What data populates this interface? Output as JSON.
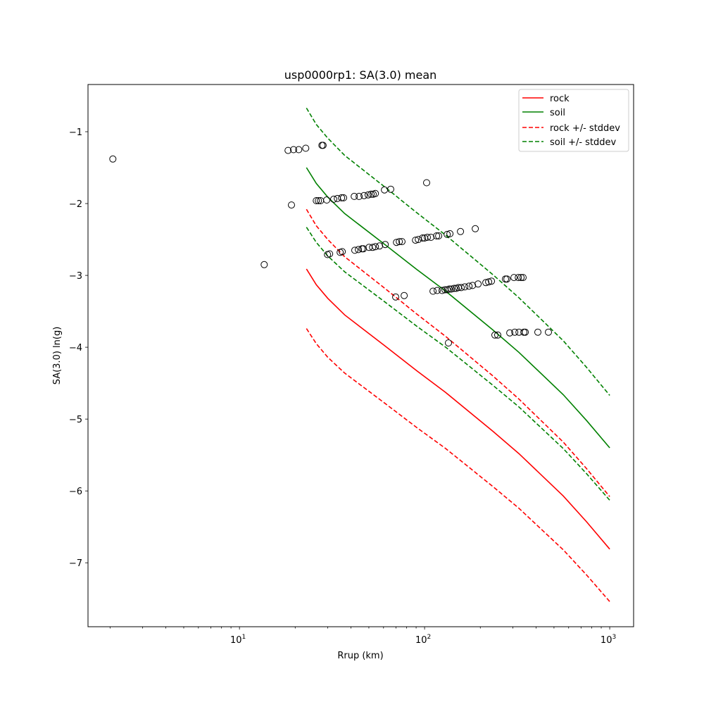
{
  "chart_data": {
    "type": "line",
    "title": "usp0000rp1: SA(3.0) mean",
    "xlabel": "Rrup (km)",
    "ylabel": "SA(3.0) ln(g)",
    "xscale": "log",
    "xlim": [
      1.52,
      1346
    ],
    "ylim": [
      -7.89,
      -0.343
    ],
    "grid": false,
    "legend_placement": "top-right",
    "x_ticks": [
      {
        "value": 10,
        "base": "10",
        "exp": "1"
      },
      {
        "value": 100,
        "base": "10",
        "exp": "2"
      },
      {
        "value": 1000,
        "base": "10",
        "exp": "3"
      }
    ],
    "y_ticks": [
      {
        "value": -1,
        "label": "−1"
      },
      {
        "value": -2,
        "label": "−2"
      },
      {
        "value": -3,
        "label": "−3"
      },
      {
        "value": -4,
        "label": "−4"
      },
      {
        "value": -5,
        "label": "−5"
      },
      {
        "value": -6,
        "label": "−6"
      },
      {
        "value": -7,
        "label": "−7"
      }
    ],
    "curve_x": [
      23,
      26,
      30,
      37,
      61,
      91,
      130,
      234,
      323,
      561,
      750,
      1000
    ],
    "series": [
      {
        "name": "rock",
        "color": "#ff0000",
        "style": "solid",
        "values": [
          -2.91,
          -3.13,
          -3.32,
          -3.55,
          -3.98,
          -4.33,
          -4.63,
          -5.17,
          -5.48,
          -6.07,
          -6.43,
          -6.81
        ]
      },
      {
        "name": "soil",
        "color": "#008000",
        "style": "solid",
        "values": [
          -1.5,
          -1.72,
          -1.91,
          -2.14,
          -2.57,
          -2.92,
          -3.22,
          -3.76,
          -4.07,
          -4.66,
          -5.02,
          -5.4
        ]
      }
    ],
    "stddev": [
      0.83,
      0.82,
      0.82,
      0.81,
      0.8,
      0.79,
      0.78,
      0.77,
      0.76,
      0.75,
      0.74,
      0.73
    ],
    "stddev_series": [
      {
        "name": "rock +/- stddev",
        "of": "rock",
        "color": "#ff0000",
        "style": "dashed"
      },
      {
        "name": "soil +/- stddev",
        "of": "soil",
        "color": "#008000",
        "style": "dashed"
      }
    ],
    "observations": {
      "marker": "open-circle",
      "points": [
        [
          2.07,
          -1.38
        ],
        [
          13.6,
          -2.85
        ],
        [
          18.3,
          -1.26
        ],
        [
          19.6,
          -1.25
        ],
        [
          20.9,
          -1.25
        ],
        [
          22.8,
          -1.23
        ],
        [
          27.9,
          -1.19
        ],
        [
          28.3,
          -1.19
        ],
        [
          19.1,
          -2.02
        ],
        [
          26.0,
          -1.96
        ],
        [
          26.7,
          -1.96
        ],
        [
          27.4,
          -1.96
        ],
        [
          29.6,
          -1.95
        ],
        [
          32.3,
          -1.94
        ],
        [
          33.8,
          -1.93
        ],
        [
          35.6,
          -1.92
        ],
        [
          36.5,
          -1.92
        ],
        [
          41.7,
          -1.9
        ],
        [
          44.3,
          -1.9
        ],
        [
          47.1,
          -1.89
        ],
        [
          49.6,
          -1.88
        ],
        [
          51.4,
          -1.87
        ],
        [
          52.7,
          -1.87
        ],
        [
          54.2,
          -1.86
        ],
        [
          60.7,
          -1.81
        ],
        [
          65.6,
          -1.8
        ],
        [
          102.6,
          -1.71
        ],
        [
          29.9,
          -2.71
        ],
        [
          30.7,
          -2.7
        ],
        [
          35.0,
          -2.68
        ],
        [
          35.9,
          -2.67
        ],
        [
          42.0,
          -2.65
        ],
        [
          43.9,
          -2.64
        ],
        [
          45.9,
          -2.63
        ],
        [
          46.7,
          -2.63
        ],
        [
          50.1,
          -2.61
        ],
        [
          52.4,
          -2.61
        ],
        [
          54.2,
          -2.6
        ],
        [
          57.1,
          -2.59
        ],
        [
          61.3,
          -2.57
        ],
        [
          70.5,
          -2.54
        ],
        [
          73.0,
          -2.53
        ],
        [
          75.5,
          -2.53
        ],
        [
          89.3,
          -2.51
        ],
        [
          92.5,
          -2.5
        ],
        [
          97.5,
          -2.48
        ],
        [
          100,
          -2.48
        ],
        [
          103.5,
          -2.47
        ],
        [
          108.2,
          -2.47
        ],
        [
          116.1,
          -2.45
        ],
        [
          119.1,
          -2.45
        ],
        [
          132.4,
          -2.43
        ],
        [
          137.1,
          -2.42
        ],
        [
          156.3,
          -2.39
        ],
        [
          187.9,
          -2.35
        ],
        [
          111.1,
          -3.22
        ],
        [
          117.0,
          -3.21
        ],
        [
          124.4,
          -3.21
        ],
        [
          128.8,
          -3.2
        ],
        [
          132.4,
          -3.2
        ],
        [
          135.8,
          -3.19
        ],
        [
          139.4,
          -3.19
        ],
        [
          144.4,
          -3.18
        ],
        [
          148.3,
          -3.18
        ],
        [
          152.3,
          -3.17
        ],
        [
          157.7,
          -3.17
        ],
        [
          164.8,
          -3.16
        ],
        [
          173.7,
          -3.15
        ],
        [
          181.5,
          -3.14
        ],
        [
          194.6,
          -3.12
        ],
        [
          214.2,
          -3.1
        ],
        [
          221.8,
          -3.09
        ],
        [
          229.7,
          -3.08
        ],
        [
          273.5,
          -3.05
        ],
        [
          278.6,
          -3.05
        ],
        [
          304.0,
          -3.03
        ],
        [
          320.6,
          -3.03
        ],
        [
          331.9,
          -3.03
        ],
        [
          340.4,
          -3.03
        ],
        [
          239.9,
          -3.83
        ],
        [
          248.3,
          -3.83
        ],
        [
          288.4,
          -3.8
        ],
        [
          306.9,
          -3.79
        ],
        [
          323.6,
          -3.79
        ],
        [
          343.6,
          -3.79
        ],
        [
          349.9,
          -3.79
        ],
        [
          409.3,
          -3.79
        ],
        [
          466.7,
          -3.79
        ],
        [
          69.8,
          -3.3
        ],
        [
          77.6,
          -3.28
        ],
        [
          134.6,
          -3.94
        ]
      ]
    }
  }
}
